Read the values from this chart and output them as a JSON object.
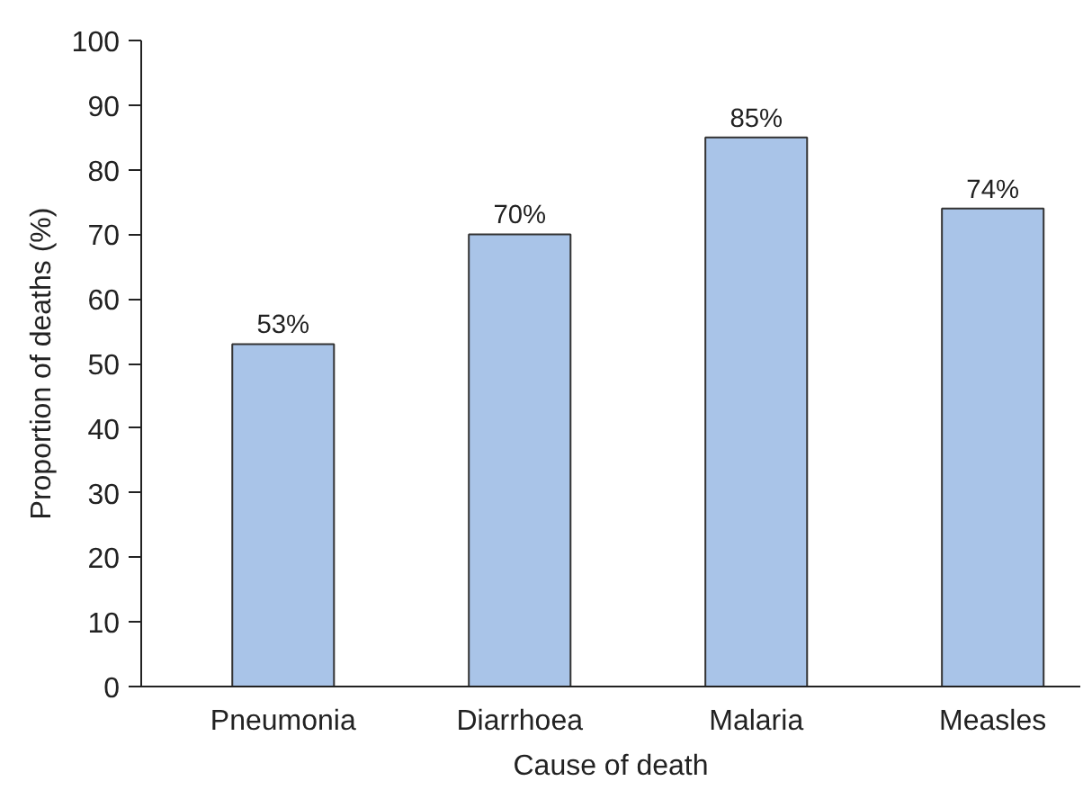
{
  "chart_data": {
    "type": "bar",
    "xlabel": "Cause of death",
    "ylabel": "Proportion of deaths (%)",
    "categories": [
      "Pneumonia",
      "Diarrhoea",
      "Malaria",
      "Measles"
    ],
    "values": [
      53,
      70,
      85,
      74
    ],
    "value_labels": [
      "53%",
      "70%",
      "85%",
      "74%"
    ],
    "color": "#a9c4e8",
    "ylim": [
      0,
      100
    ],
    "yticks": [
      0,
      10,
      20,
      30,
      40,
      50,
      60,
      70,
      80,
      90,
      100
    ],
    "grid": false
  }
}
